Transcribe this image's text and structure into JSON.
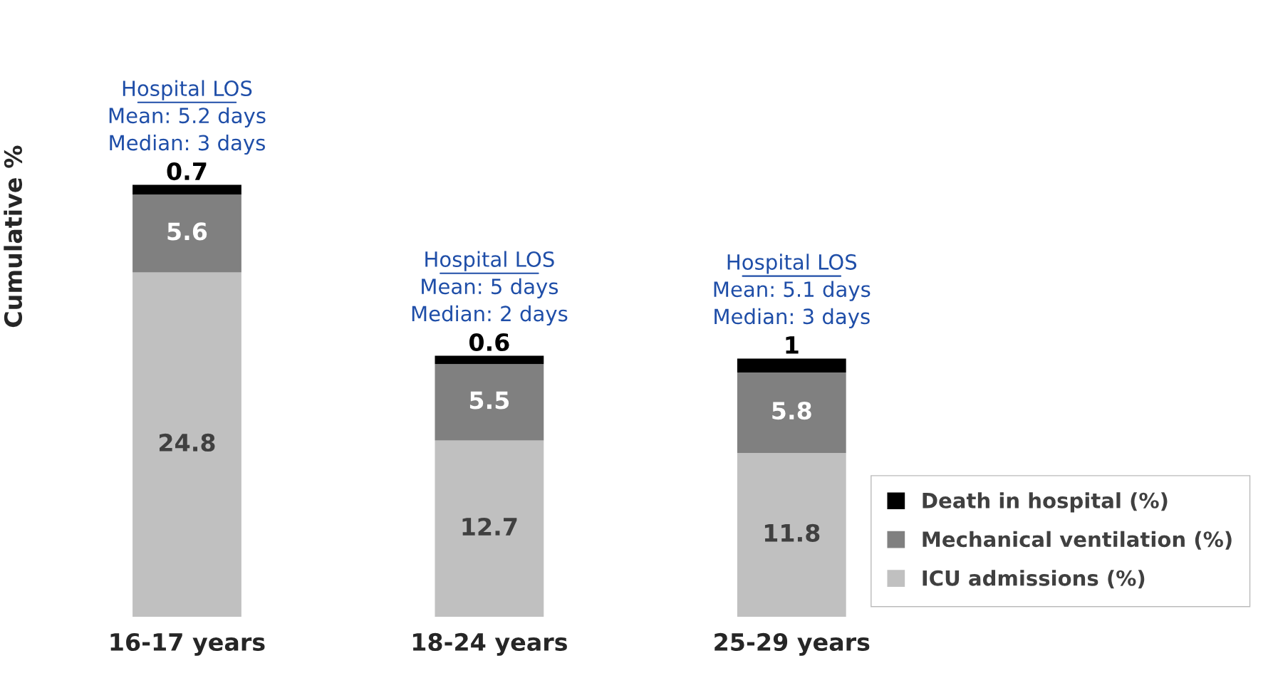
{
  "chart_data": {
    "type": "bar",
    "stacked": true,
    "ylabel": "Cumulative %",
    "categories": [
      "16-17 years",
      "18-24 years",
      "25-29 years"
    ],
    "series": [
      {
        "name": "ICU admissions (%)",
        "color": "#c0c0c0",
        "values": [
          24.8,
          12.7,
          11.8
        ]
      },
      {
        "name": "Mechanical ventilation (%)",
        "color": "#808080",
        "values": [
          5.6,
          5.5,
          5.8
        ]
      },
      {
        "name": "Death in hospital (%)",
        "color": "#000000",
        "values": [
          0.7,
          0.6,
          1
        ]
      }
    ],
    "data_labels": true,
    "legend": "bottom right",
    "tick_labels": "x",
    "grid": false,
    "annotations": [
      {
        "text": "Hospital LOS\nMean: 5.2 days\nMedian: 3 days",
        "x": "16-17 years",
        "y": 31.1
      },
      {
        "text": "Hospital LOS\nMean: 5 days\nMedian: 2 days",
        "x": "18-24 years",
        "y": 18.8
      },
      {
        "text": "Hospital LOS\nMean: 5.1 days\nMedian: 3 days",
        "x": "25-29 years",
        "y": 18.6
      }
    ]
  }
}
